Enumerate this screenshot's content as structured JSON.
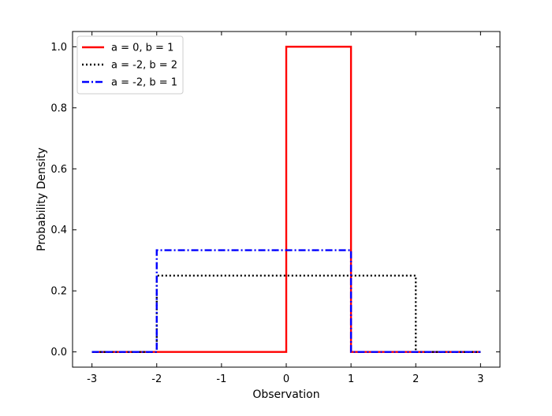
{
  "chart_data": {
    "type": "line",
    "title": "",
    "xlabel": "Observation",
    "ylabel": "Probability Density",
    "xlim": [
      -3.3,
      3.3
    ],
    "ylim": [
      -0.05,
      1.05
    ],
    "xticks": [
      -3,
      -2,
      -1,
      0,
      1,
      2,
      3
    ],
    "yticks": [
      0.0,
      0.2,
      0.4,
      0.6,
      0.8,
      1.0
    ],
    "xtick_labels": [
      "-3",
      "-2",
      "-1",
      "0",
      "1",
      "2",
      "3"
    ],
    "ytick_labels": [
      "0.0",
      "0.2",
      "0.4",
      "0.6",
      "0.8",
      "1.0"
    ],
    "tick_direction": "in",
    "grid": false,
    "legend_position": "top-left",
    "series": [
      {
        "name": "a = 0, b = 1",
        "color": "#ff0000",
        "linestyle": "solid",
        "x": [
          -3,
          0,
          0,
          1,
          1,
          3
        ],
        "y": [
          0,
          0,
          1,
          1,
          0,
          0
        ]
      },
      {
        "name": "a = -2, b = 2",
        "color": "#000000",
        "linestyle": "dotted",
        "x": [
          -3,
          -2,
          -2,
          2,
          2,
          3
        ],
        "y": [
          0,
          0,
          0.25,
          0.25,
          0,
          0
        ]
      },
      {
        "name": "a = -2, b = 1",
        "color": "#0000ff",
        "linestyle": "dashdot",
        "x": [
          -3,
          -2,
          -2,
          1,
          1,
          3
        ],
        "y": [
          0,
          0,
          0.3333,
          0.3333,
          0,
          0
        ]
      }
    ]
  }
}
